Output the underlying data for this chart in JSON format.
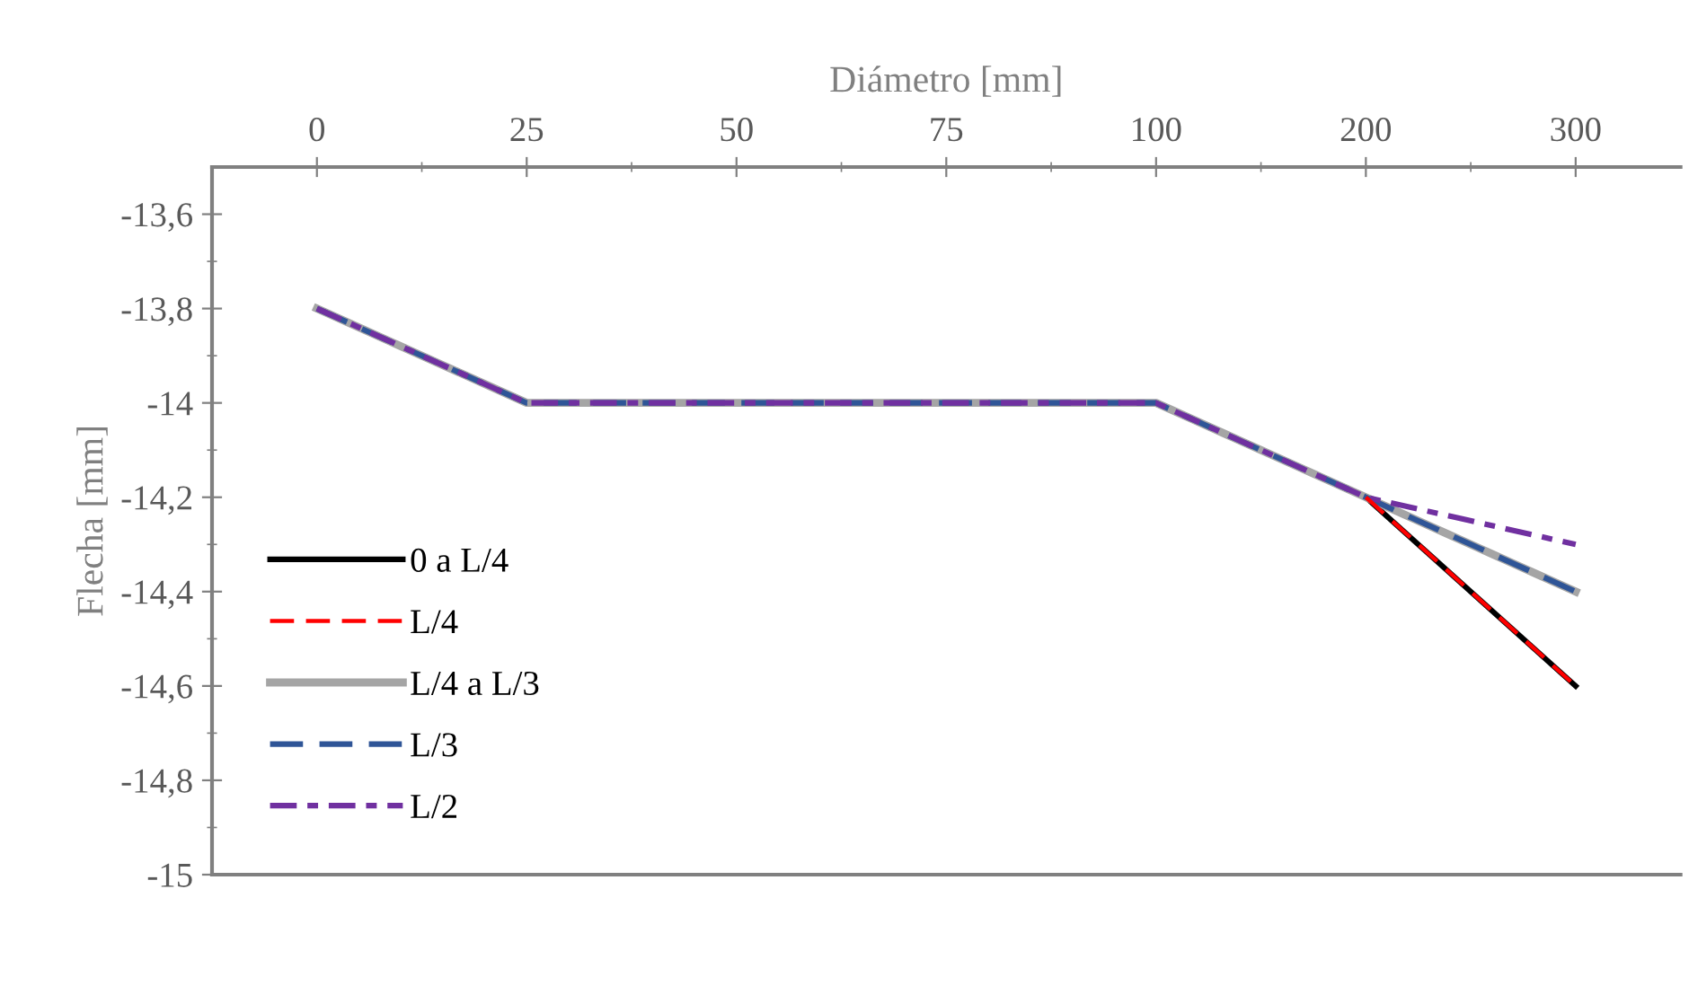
{
  "chart_data": {
    "type": "line",
    "xlabel": "Diámetro [mm]",
    "ylabel": "Flecha [mm]",
    "categories": [
      "0",
      "25",
      "50",
      "75",
      "100",
      "200",
      "300"
    ],
    "ylim": [
      -15,
      -13.5
    ],
    "yticks": [
      {
        "value": -15,
        "label": "-15"
      },
      {
        "value": -14.8,
        "label": "-14,8"
      },
      {
        "value": -14.6,
        "label": "-14,6"
      },
      {
        "value": -14.4,
        "label": "-14,4"
      },
      {
        "value": -14.2,
        "label": "-14,2"
      },
      {
        "value": -14,
        "label": "-14"
      },
      {
        "value": -13.8,
        "label": "-13,8"
      },
      {
        "value": -13.6,
        "label": "-13,6"
      }
    ],
    "grid": false,
    "legend": "bottom left",
    "marker": "none",
    "series": [
      {
        "name": "0 a L/4",
        "color": "#000000",
        "line_style": "solid",
        "values": [
          null,
          null,
          null,
          null,
          null,
          -14.2,
          -14.6
        ]
      },
      {
        "name": "L/4",
        "color": "#ff0000",
        "line_style": "dashed",
        "values": [
          null,
          null,
          null,
          null,
          null,
          -14.2,
          -14.6
        ]
      },
      {
        "name": "L/4 a L/3",
        "color": "#a5a5a5",
        "line_style": "solid",
        "values": [
          -13.8,
          -14,
          -14,
          -14,
          -14,
          -14.2,
          -14.4
        ]
      },
      {
        "name": "L/3",
        "color": "#2f5597",
        "line_style": "dashed",
        "values": [
          -13.8,
          -14,
          -14,
          -14,
          -14,
          -14.2,
          -14.4
        ]
      },
      {
        "name": "L/2",
        "color": "#7030a0",
        "line_style": "dashdot",
        "values": [
          -13.8,
          -14,
          -14,
          -14,
          -14,
          -14.2,
          -14.3
        ]
      }
    ]
  }
}
